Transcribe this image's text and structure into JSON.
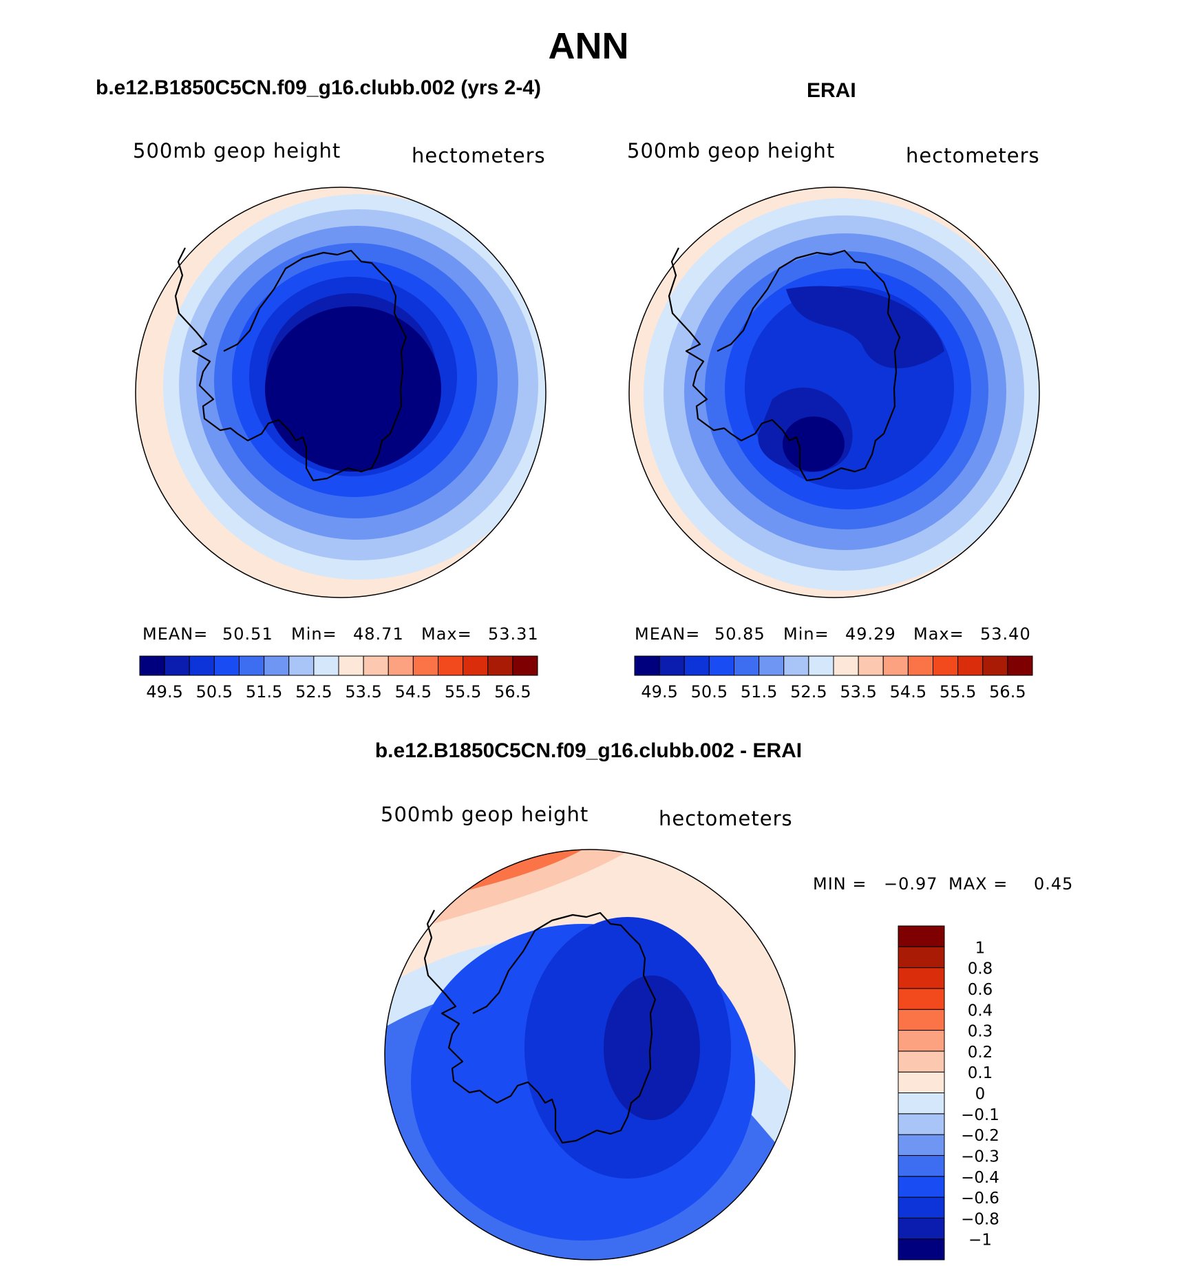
{
  "page_title": "ANN",
  "panels": [
    {
      "title": "b.e12.B1850C5CN.f09_g16.clubb.002 (yrs 2-4)",
      "var_label": "500mb geop height",
      "units_label": "hectometers",
      "stats": {
        "mean_label": "MEAN=",
        "mean": "50.51",
        "min_label": "Min=",
        "min": "48.71",
        "max_label": "Max=",
        "max": "53.31"
      },
      "pattern": "model"
    },
    {
      "title": "ERAI",
      "var_label": "500mb geop height",
      "units_label": "hectometers",
      "stats": {
        "mean_label": "MEAN=",
        "mean": "50.85",
        "min_label": "Min=",
        "min": "49.29",
        "max_label": "Max=",
        "max": "53.40"
      },
      "pattern": "obs"
    },
    {
      "title": "b.e12.B1850C5CN.f09_g16.clubb.002 - ERAI",
      "var_label": "500mb geop height",
      "units_label": "hectometers",
      "stats": {
        "min_label": "MIN =",
        "min": "−0.97",
        "max_label": "MAX =",
        "max": "0.45"
      },
      "pattern": "diff"
    }
  ],
  "colorbar_abs": {
    "colors": [
      "#00007f",
      "#0a1daf",
      "#0c34d8",
      "#1a4cf4",
      "#3d6ef2",
      "#6f96f3",
      "#a9c5f8",
      "#d5e7fb",
      "#fde7d8",
      "#fcc8b0",
      "#fca281",
      "#fa7447",
      "#f24a1c",
      "#d92d0b",
      "#a91b05",
      "#7f0000"
    ],
    "tick_labels": [
      "49.5",
      "50.5",
      "51.5",
      "52.5",
      "53.5",
      "54.5",
      "55.5",
      "56.5"
    ]
  },
  "colorbar_diff": {
    "colors": [
      "#00007f",
      "#0a1daf",
      "#0c34d8",
      "#1a4cf4",
      "#3d6ef2",
      "#6f96f3",
      "#a9c5f8",
      "#d5e7fb",
      "#fde7d8",
      "#fcc8b0",
      "#fca281",
      "#fa7447",
      "#f24a1c",
      "#d92d0b",
      "#a91b05",
      "#7f0000"
    ],
    "tick_labels": [
      "−1",
      "−0.8",
      "−0.6",
      "−0.4",
      "−0.3",
      "−0.2",
      "−0.1",
      "0",
      "0.1",
      "0.2",
      "0.3",
      "0.4",
      "0.6",
      "0.8",
      "1"
    ]
  }
}
